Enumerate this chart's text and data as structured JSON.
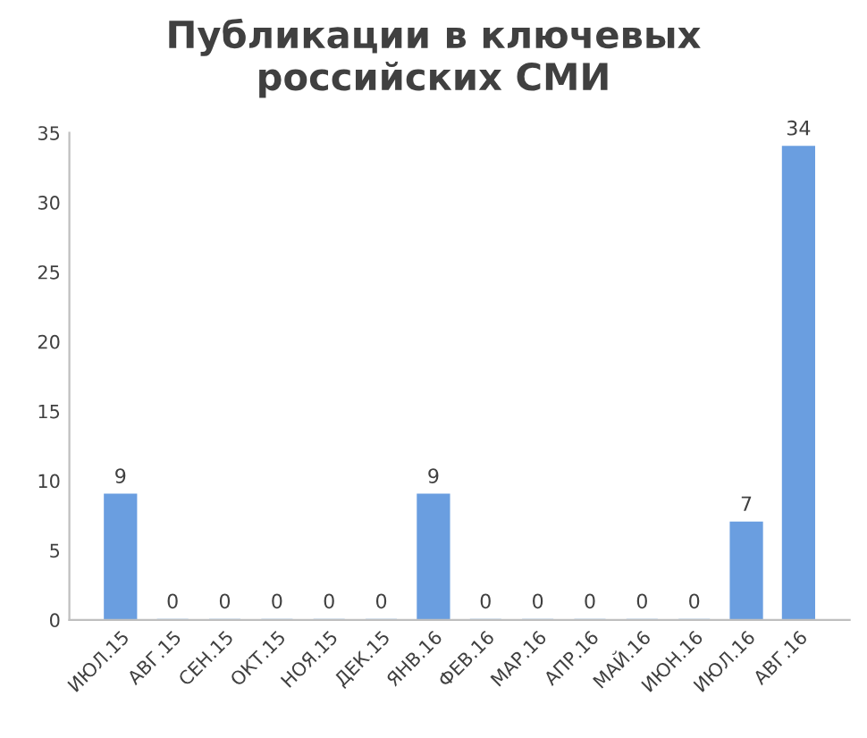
{
  "chart_data": {
    "type": "bar",
    "title": "Публикации в ключевых\nроссийских СМИ",
    "categories": [
      "ИЮЛ.15",
      "АВГ.15",
      "СЕН.15",
      "ОКТ.15",
      "НОЯ.15",
      "ДЕК.15",
      "ЯНВ.16",
      "ФЕВ.16",
      "МАР.16",
      "АПР.16",
      "МАЙ.16",
      "ИЮН.16",
      "ИЮЛ.16",
      "АВГ.16"
    ],
    "values": [
      9,
      0,
      0,
      0,
      0,
      0,
      9,
      0,
      0,
      0,
      0,
      0,
      7,
      34
    ],
    "color": "#6a9ee0",
    "ylim": [
      0,
      35
    ],
    "yticks": [
      0,
      5,
      10,
      15,
      20,
      25,
      30,
      35
    ],
    "data_labels": true,
    "grid": false,
    "legend": false
  }
}
